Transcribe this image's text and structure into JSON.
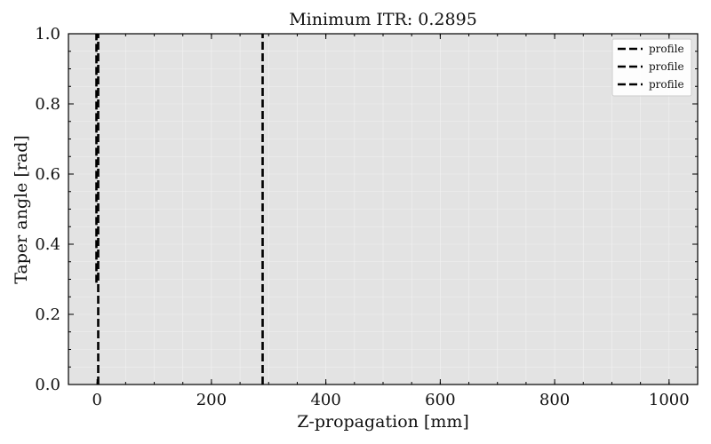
{
  "chart_data": {
    "type": "line",
    "title": "Minimum ITR: 0.2895",
    "xlabel": "Z-propagation [mm]",
    "ylabel": "Taper angle [rad]",
    "xlim": [
      -50,
      1050
    ],
    "ylim": [
      0.0,
      1.0
    ],
    "xticks": [
      0,
      200,
      400,
      600,
      800,
      1000
    ],
    "yticks": [
      0.0,
      0.2,
      0.4,
      0.6,
      0.8,
      1.0
    ],
    "xtick_labels": [
      "0",
      "200",
      "400",
      "600",
      "800",
      "1000"
    ],
    "ytick_labels": [
      "0.0",
      "0.2",
      "0.4",
      "0.6",
      "0.8",
      "1.0"
    ],
    "grid": true,
    "legend_position": "top-right",
    "background": "#e3e3e3",
    "line_color": "#000000",
    "line_style": "dashed",
    "series": [
      {
        "name": "profile",
        "x": [
          -1,
          -1
        ],
        "y": [
          0.29,
          1.0
        ]
      },
      {
        "name": "profile",
        "x": [
          2,
          2
        ],
        "y": [
          0.0,
          1.0
        ]
      },
      {
        "name": "profile",
        "x": [
          289.5,
          289.5
        ],
        "y": [
          0.0,
          1.0
        ]
      }
    ]
  }
}
